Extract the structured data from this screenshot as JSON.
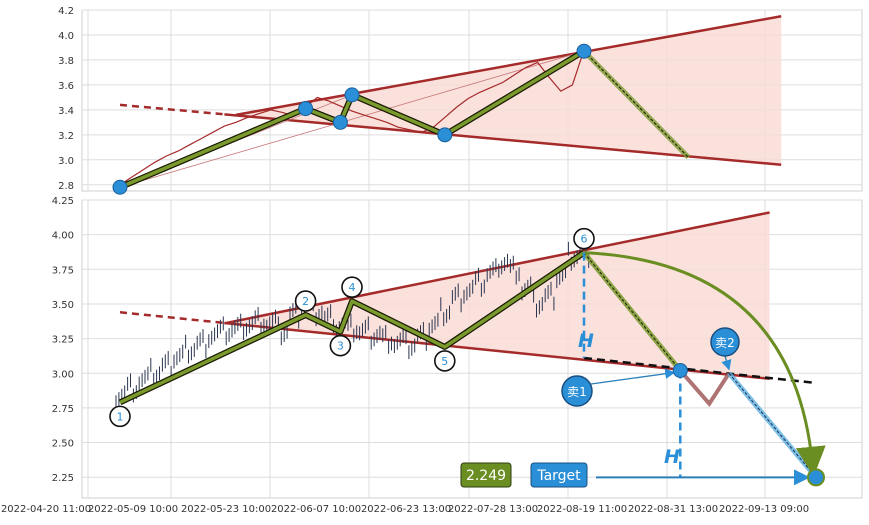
{
  "chart_data": [
    {
      "type": "line",
      "panel": "top",
      "ylim": [
        2.75,
        4.2
      ],
      "y_ticks": [
        "4.2",
        "4.0",
        "3.8",
        "3.6",
        "3.4",
        "3.2",
        "3.0",
        "2.8"
      ],
      "grid": true,
      "series": [
        {
          "values": [
            2.8,
            2.86,
            2.92,
            2.98,
            3.03,
            3.07,
            3.12,
            3.17,
            3.22,
            3.27,
            3.3,
            3.34,
            3.37,
            3.4,
            3.38,
            3.35,
            3.42,
            3.5,
            3.47,
            3.43,
            3.39,
            3.36,
            3.33,
            3.3,
            3.26,
            3.24,
            3.22,
            3.26,
            3.34,
            3.42,
            3.49,
            3.54,
            3.58,
            3.62,
            3.68,
            3.74,
            3.78,
            3.66,
            3.55,
            3.6,
            3.88
          ]
        }
      ],
      "pattern_points": [
        {
          "x": 0,
          "y": 2.78
        },
        {
          "x": 16,
          "y": 3.41
        },
        {
          "x": 19,
          "y": 3.3
        },
        {
          "x": 20,
          "y": 3.52
        },
        {
          "x": 28,
          "y": 3.2
        },
        {
          "x": 40,
          "y": 3.87
        },
        {
          "x": 49,
          "y": 3.02
        }
      ],
      "upper_trendline": [
        {
          "x": 10,
          "y": 3.36
        },
        {
          "x": 57,
          "y": 4.15
        }
      ],
      "lower_trendline": [
        {
          "x": 0,
          "y": 3.44
        },
        {
          "x": 57,
          "y": 2.96
        }
      ]
    },
    {
      "type": "line",
      "panel": "bottom",
      "ylim": [
        2.1,
        4.25
      ],
      "y_ticks": [
        "4.25",
        "4.00",
        "3.75",
        "3.50",
        "3.25",
        "3.00",
        "2.75",
        "2.50",
        "2.25"
      ],
      "x_tick_labels": [
        "2022-04-20 11:00",
        "2022-05-09 10:00",
        "2022-05-23 10:00",
        "2022-06-07 10:00",
        "2022-06-23 13:00",
        "2022-07-28 13:00",
        "2022-08-19 11:00",
        "2022-08-31 13:00",
        "2022-09-13 09:00"
      ],
      "grid": true,
      "points": [
        {
          "label": "1",
          "x": 0,
          "y": 2.79
        },
        {
          "label": "2",
          "x": 16,
          "y": 3.42
        },
        {
          "label": "3",
          "x": 19,
          "y": 3.3
        },
        {
          "label": "4",
          "x": 20,
          "y": 3.52
        },
        {
          "label": "5",
          "x": 28,
          "y": 3.19
        },
        {
          "label": "6",
          "x": 40,
          "y": 3.87
        }
      ],
      "target_value": "2.249",
      "target_label": "Target",
      "sell_labels": [
        "卖1",
        "卖2"
      ],
      "height_marker": "H"
    }
  ],
  "colors": {
    "trendline": "#a52a2a",
    "zigzag_fill": "#7a9a2e",
    "zigzag_edge": "#1a1a00",
    "point_blue": "#2a8fd6",
    "price_top": "#a52a2a",
    "price_bottom": "#2a3550",
    "triangle_fill": "#f9dcd6",
    "target_box": "#6b8e23",
    "target_label_bg": "#2a8fd6",
    "sell_bubble": "#2a8fd6"
  }
}
